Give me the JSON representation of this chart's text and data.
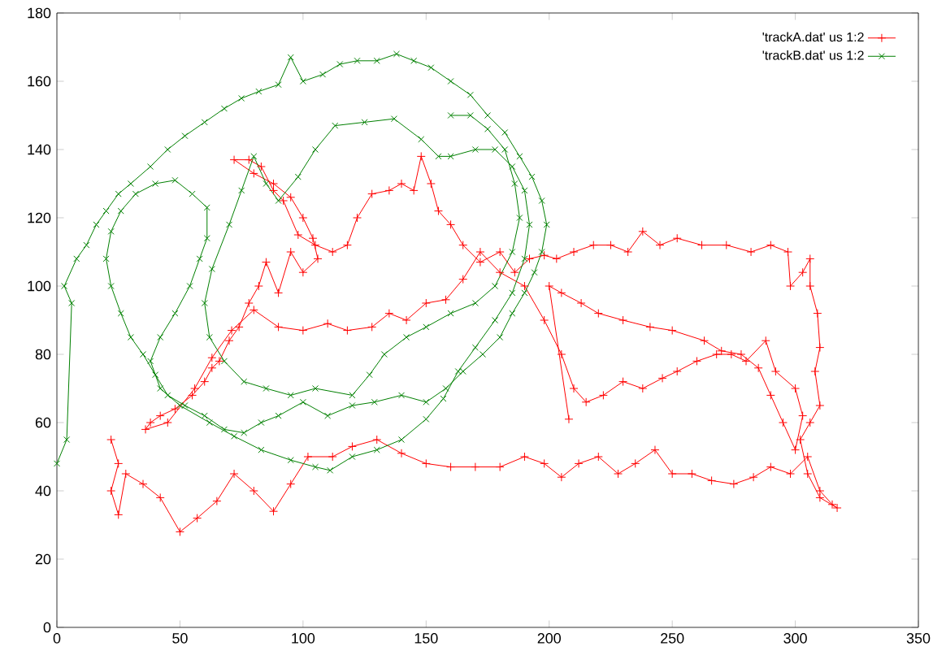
{
  "chart_data": {
    "type": "line",
    "xlim": [
      0,
      350
    ],
    "ylim": [
      0,
      180
    ],
    "xticks": [
      0,
      50,
      100,
      150,
      200,
      250,
      300,
      350
    ],
    "yticks": [
      0,
      20,
      40,
      60,
      80,
      100,
      120,
      140,
      160,
      180
    ],
    "legend": "top right",
    "line_style": "solid",
    "series": [
      {
        "name": "'trackA.dat' us 1:2",
        "color": "#ff0000",
        "marker": "plus",
        "x": [
          22,
          25,
          22,
          25,
          28,
          35,
          42,
          50,
          57,
          65,
          72,
          80,
          88,
          95,
          102,
          112,
          120,
          130,
          140,
          150,
          160,
          170,
          180,
          190,
          198,
          205,
          212,
          220,
          228,
          235,
          243,
          250,
          258,
          266,
          275,
          283,
          290,
          298,
          305,
          310,
          315,
          317,
          310,
          305,
          302,
          306,
          310,
          308,
          310,
          309,
          306,
          306,
          303,
          298,
          297,
          290,
          282,
          272,
          262,
          252,
          245,
          238,
          232,
          225,
          218,
          210,
          203,
          198,
          192,
          186,
          180,
          172,
          165,
          160,
          155,
          152,
          148,
          145,
          140,
          135,
          128,
          122,
          118,
          112,
          105,
          98,
          92,
          88,
          83,
          78,
          72,
          80,
          88,
          95,
          100,
          104,
          106,
          100,
          95,
          90,
          85,
          82,
          78,
          74,
          70,
          66,
          63,
          60,
          55,
          48,
          42,
          38,
          36,
          45,
          56,
          63,
          71,
          80,
          90,
          100,
          110,
          118,
          128,
          135,
          142,
          150,
          158,
          165,
          172,
          180,
          190,
          198,
          205,
          210,
          215,
          222,
          230,
          238,
          246,
          252,
          260,
          268,
          274,
          280,
          288,
          292,
          300,
          303,
          300,
          295,
          290,
          285,
          278,
          270,
          263,
          250,
          241,
          230,
          220,
          213,
          205,
          200,
          208
        ],
        "values": [
          55,
          48,
          40,
          33,
          45,
          42,
          38,
          28,
          32,
          37,
          45,
          40,
          34,
          42,
          50,
          50,
          53,
          55,
          51,
          48,
          47,
          47,
          47,
          50,
          48,
          44,
          48,
          50,
          45,
          48,
          52,
          45,
          45,
          43,
          42,
          44,
          47,
          45,
          50,
          40,
          36,
          35,
          38,
          45,
          55,
          60,
          65,
          75,
          82,
          92,
          100,
          108,
          104,
          100,
          110,
          112,
          110,
          112,
          112,
          114,
          112,
          116,
          110,
          112,
          112,
          110,
          108,
          109,
          108,
          104,
          110,
          107,
          112,
          118,
          122,
          130,
          138,
          128,
          130,
          128,
          127,
          120,
          112,
          110,
          112,
          115,
          125,
          128,
          135,
          137,
          137,
          133,
          130,
          126,
          120,
          114,
          108,
          104,
          110,
          98,
          107,
          100,
          95,
          88,
          84,
          78,
          76,
          72,
          68,
          64,
          62,
          60,
          58,
          60,
          70,
          79,
          87,
          93,
          88,
          87,
          89,
          87,
          88,
          92,
          90,
          95,
          96,
          102,
          110,
          104,
          100,
          90,
          80,
          70,
          66,
          68,
          72,
          70,
          73,
          75,
          78,
          80,
          80,
          78,
          84,
          75,
          70,
          62,
          52,
          60,
          68,
          76,
          80,
          81,
          84,
          87,
          88,
          90,
          92,
          95,
          98,
          100,
          61
        ]
      },
      {
        "name": "'trackB.dat' us 1:2",
        "color": "#008000",
        "marker": "cross",
        "x": [
          0,
          4,
          6,
          3,
          8,
          12,
          16,
          20,
          25,
          30,
          38,
          45,
          52,
          60,
          68,
          75,
          82,
          90,
          95,
          100,
          108,
          115,
          122,
          130,
          138,
          145,
          152,
          160,
          168,
          175,
          182,
          188,
          193,
          197,
          199,
          197,
          194,
          190,
          185,
          180,
          173,
          165,
          158,
          150,
          140,
          129,
          120,
          110,
          100,
          90,
          83,
          76,
          68,
          60,
          52,
          45,
          40,
          35,
          30,
          26,
          22,
          20,
          22,
          26,
          32,
          40,
          48,
          55,
          61,
          61,
          58,
          54,
          48,
          42,
          38,
          42,
          50,
          62,
          72,
          83,
          95,
          105,
          111,
          120,
          130,
          140,
          150,
          157,
          163,
          170,
          178,
          185,
          190,
          192,
          190,
          185,
          178,
          170,
          160,
          155,
          148,
          137,
          125,
          113,
          105,
          98,
          90,
          85,
          80,
          75,
          70,
          63,
          60,
          62,
          68,
          76,
          85,
          95,
          105,
          120,
          127,
          133,
          142,
          150,
          160,
          170,
          178,
          185,
          188,
          186,
          182,
          175,
          168,
          160
        ],
        "values": [
          48,
          55,
          95,
          100,
          108,
          112,
          118,
          122,
          127,
          130,
          135,
          140,
          144,
          148,
          152,
          155,
          157,
          159,
          167,
          160,
          162,
          165,
          166,
          166,
          168,
          166,
          164,
          160,
          156,
          150,
          145,
          138,
          132,
          125,
          118,
          110,
          104,
          98,
          92,
          85,
          80,
          75,
          70,
          66,
          68,
          66,
          65,
          62,
          66,
          62,
          60,
          57,
          58,
          62,
          65,
          68,
          74,
          80,
          85,
          92,
          100,
          108,
          116,
          122,
          127,
          130,
          131,
          127,
          123,
          114,
          108,
          100,
          92,
          85,
          78,
          70,
          65,
          60,
          56,
          52,
          49,
          47,
          46,
          50,
          52,
          55,
          61,
          67,
          75,
          82,
          90,
          98,
          108,
          118,
          128,
          135,
          140,
          140,
          138,
          138,
          143,
          149,
          148,
          147,
          140,
          132,
          125,
          130,
          138,
          128,
          118,
          105,
          95,
          85,
          78,
          72,
          70,
          68,
          70,
          68,
          74,
          80,
          85,
          88,
          92,
          95,
          100,
          110,
          120,
          130,
          140,
          146,
          150,
          150
        ]
      }
    ]
  }
}
